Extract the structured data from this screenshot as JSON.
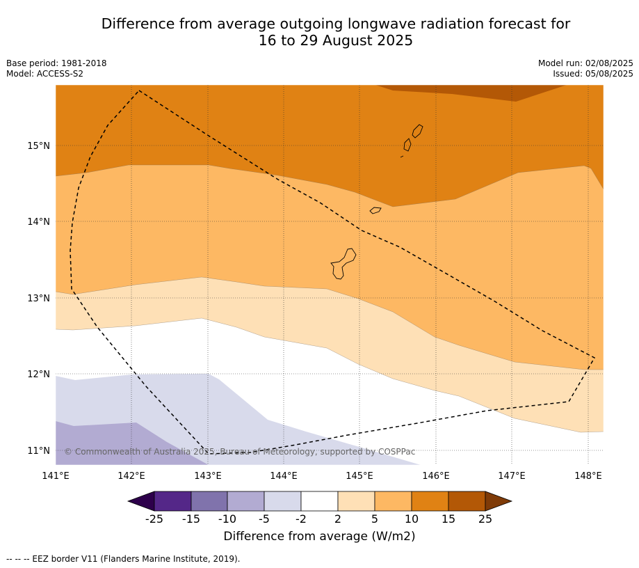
{
  "title": {
    "line1": "Difference from average outgoing longwave radiation forecast for",
    "line2": "16 to 29 August 2025"
  },
  "meta": {
    "base_period": "Base period: 1981-2018",
    "model": "Model: ACCESS-S2",
    "model_run": "Model run: 02/08/2025",
    "issued": "Issued: 05/08/2025"
  },
  "map": {
    "lon_labels": [
      "141°E",
      "142°E",
      "143°E",
      "144°E",
      "145°E",
      "146°E",
      "147°E",
      "148°E"
    ],
    "lat_labels": [
      "15°N",
      "14°N",
      "13°N",
      "12°N",
      "11°N"
    ],
    "copyright": "© Commonwealth of Australia 2025, Bureau of Meteorology, supported by COSPPac",
    "fill_colors": {
      "orange_15": "#e08214",
      "orange_25": "#b35806",
      "orange_10": "#fdb863",
      "orange_5": "#fee0b6",
      "white": "#ffffff",
      "purple_5": "#d8daeb",
      "purple_10": "#b2abd2"
    }
  },
  "colorbar": {
    "title": "Difference from average (W/m2)",
    "ticks": [
      "-25",
      "-15",
      "-10",
      "-5",
      "-2",
      "2",
      "5",
      "10",
      "15",
      "25"
    ],
    "colors": [
      "#2d004b",
      "#542788",
      "#8073ac",
      "#b2abd2",
      "#d8daeb",
      "#ffffff",
      "#fee0b6",
      "#fdb863",
      "#e08214",
      "#b35806",
      "#7f3b08"
    ]
  },
  "footer": "--  --  -- EEZ border V11 (Flanders Marine Institute, 2019)."
}
